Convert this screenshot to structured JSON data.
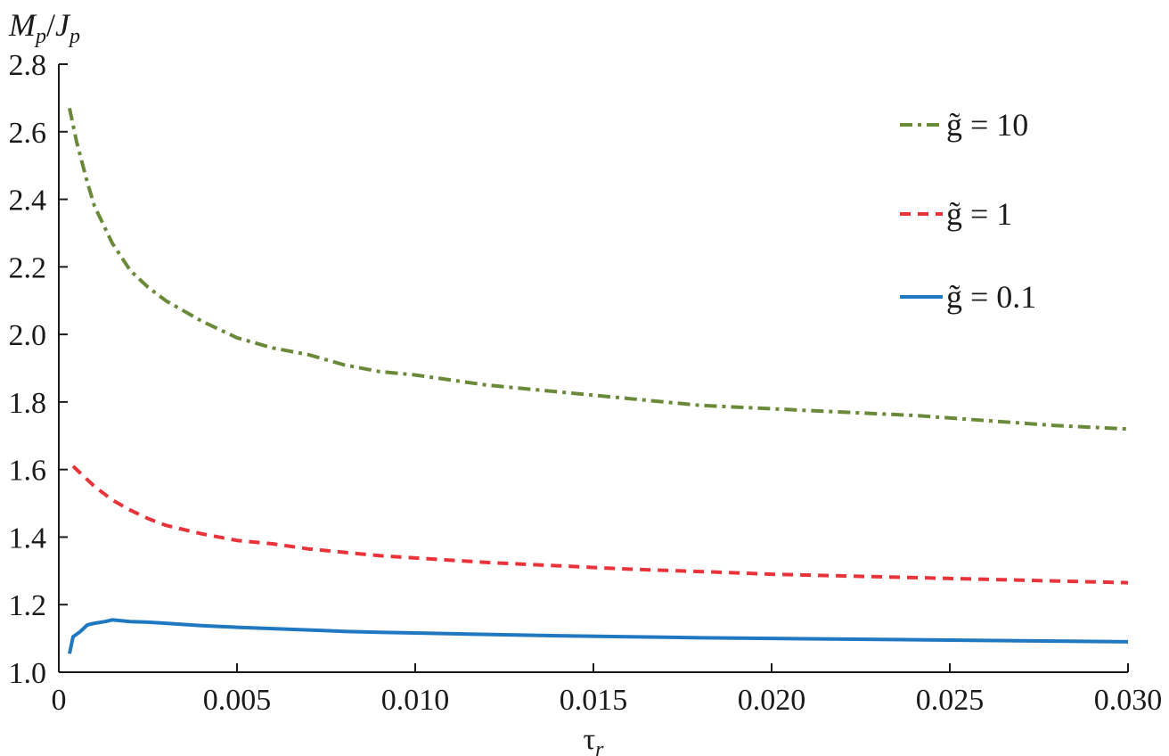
{
  "chart_data": {
    "type": "line",
    "title": "",
    "ylabel": "M_p/J_p",
    "xlabel": "τ_r",
    "xlim": [
      0,
      0.03
    ],
    "ylim": [
      1.0,
      2.8
    ],
    "grid": false,
    "legend_position": "top-right",
    "x_ticks": [
      "0.005",
      "0.010",
      "0.015",
      "0.020",
      "0.025",
      "0.030"
    ],
    "y_ticks": [
      "1.0",
      "1.2",
      "1.4",
      "1.6",
      "1.8",
      "2.0",
      "2.2",
      "2.4",
      "2.6",
      "2.8"
    ],
    "series": [
      {
        "name": "g̃ = 10",
        "color": "#6a8a3a",
        "dash": "dashdot",
        "x": [
          0.0003,
          0.0005,
          0.0008,
          0.001,
          0.0015,
          0.002,
          0.0025,
          0.003,
          0.004,
          0.005,
          0.006,
          0.007,
          0.008,
          0.009,
          0.01,
          0.012,
          0.014,
          0.016,
          0.018,
          0.02,
          0.022,
          0.024,
          0.026,
          0.028,
          0.03
        ],
        "y": [
          2.67,
          2.57,
          2.45,
          2.38,
          2.27,
          2.19,
          2.14,
          2.1,
          2.04,
          1.99,
          1.96,
          1.94,
          1.91,
          1.89,
          1.88,
          1.85,
          1.83,
          1.81,
          1.79,
          1.78,
          1.77,
          1.76,
          1.745,
          1.73,
          1.72
        ]
      },
      {
        "name": "g̃ = 1",
        "color": "#e8333a",
        "dash": "dashed",
        "x": [
          0.0004,
          0.0006,
          0.001,
          0.0015,
          0.002,
          0.0025,
          0.003,
          0.004,
          0.005,
          0.006,
          0.007,
          0.008,
          0.009,
          0.01,
          0.012,
          0.014,
          0.016,
          0.018,
          0.02,
          0.022,
          0.024,
          0.026,
          0.028,
          0.03
        ],
        "y": [
          1.61,
          1.59,
          1.55,
          1.51,
          1.48,
          1.455,
          1.435,
          1.41,
          1.39,
          1.38,
          1.365,
          1.355,
          1.345,
          1.338,
          1.325,
          1.315,
          1.305,
          1.298,
          1.29,
          1.285,
          1.28,
          1.275,
          1.27,
          1.265
        ]
      },
      {
        "name": "g̃ = 0.1",
        "color": "#1f78c0",
        "dash": "solid",
        "x": [
          0.0003,
          0.0004,
          0.0006,
          0.0008,
          0.001,
          0.0013,
          0.0015,
          0.002,
          0.0025,
          0.003,
          0.004,
          0.005,
          0.006,
          0.007,
          0.008,
          0.009,
          0.01,
          0.012,
          0.014,
          0.016,
          0.018,
          0.02,
          0.022,
          0.024,
          0.026,
          0.028,
          0.03
        ],
        "y": [
          1.055,
          1.105,
          1.12,
          1.14,
          1.145,
          1.15,
          1.155,
          1.15,
          1.148,
          1.145,
          1.138,
          1.133,
          1.129,
          1.125,
          1.121,
          1.118,
          1.116,
          1.112,
          1.108,
          1.105,
          1.102,
          1.1,
          1.098,
          1.096,
          1.094,
          1.092,
          1.09
        ]
      }
    ]
  },
  "axis_tick_zero": "0"
}
